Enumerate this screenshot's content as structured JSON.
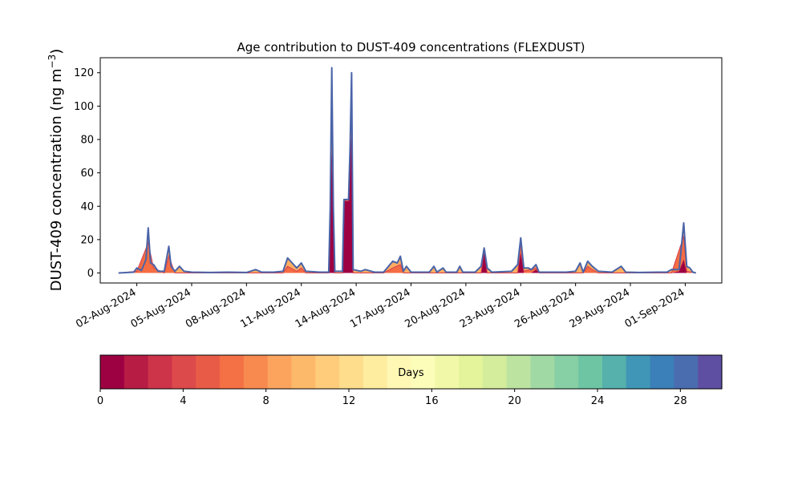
{
  "chart_data": {
    "type": "area",
    "title": "Age contribution to DUST-409 concentrations (FLEXDUST)",
    "ylabel": "DUST-409 concentration (ng m",
    "ylabel_sup": "−3",
    "ylabel_tail": ")",
    "xlabel": "",
    "ylim": [
      -6,
      129
    ],
    "xlim": [
      "2024-07-31T00:00",
      "2024-09-03T00:00"
    ],
    "yticks": [
      "0",
      "20",
      "40",
      "60",
      "80",
      "100",
      "120"
    ],
    "ytick_values": [
      0,
      20,
      40,
      60,
      80,
      100,
      120
    ],
    "xticks": [
      "02-Aug-2024",
      "05-Aug-2024",
      "08-Aug-2024",
      "11-Aug-2024",
      "14-Aug-2024",
      "17-Aug-2024",
      "20-Aug-2024",
      "23-Aug-2024",
      "26-Aug-2024",
      "29-Aug-2024",
      "01-Sep-2024"
    ],
    "xtick_dates": [
      "2024-08-02",
      "2024-08-05",
      "2024-08-08",
      "2024-08-11",
      "2024-08-14",
      "2024-08-17",
      "2024-08-20",
      "2024-08-23",
      "2024-08-26",
      "2024-08-29",
      "2024-09-01"
    ],
    "stacked": true,
    "series_note_colors": [
      "#9e0142",
      "#f46d43",
      "#fdae61",
      "#5e4fa2"
    ],
    "total": [
      [
        "2024-08-01T00:00",
        0
      ],
      [
        "2024-08-01T20:00",
        0.5
      ],
      [
        "2024-08-02T00:00",
        3
      ],
      [
        "2024-08-02T06:00",
        1.5
      ],
      [
        "2024-08-02T12:00",
        8
      ],
      [
        "2024-08-02T15:00",
        27
      ],
      [
        "2024-08-02T18:00",
        6
      ],
      [
        "2024-08-02T22:00",
        5
      ],
      [
        "2024-08-03T04:00",
        1
      ],
      [
        "2024-08-03T12:00",
        1
      ],
      [
        "2024-08-03T18:00",
        16
      ],
      [
        "2024-08-03T21:00",
        4
      ],
      [
        "2024-08-04T02:00",
        1
      ],
      [
        "2024-08-04T08:00",
        4
      ],
      [
        "2024-08-04T14:00",
        1
      ],
      [
        "2024-08-05T00:00",
        0.5
      ],
      [
        "2024-08-06T00:00",
        0.3
      ],
      [
        "2024-08-07T00:00",
        0.5
      ],
      [
        "2024-08-08T00:00",
        0.3
      ],
      [
        "2024-08-08T12:00",
        2
      ],
      [
        "2024-08-08T20:00",
        0.5
      ],
      [
        "2024-08-09T12:00",
        0.5
      ],
      [
        "2024-08-10T00:00",
        1
      ],
      [
        "2024-08-10T06:00",
        9
      ],
      [
        "2024-08-10T12:00",
        6
      ],
      [
        "2024-08-10T18:00",
        3
      ],
      [
        "2024-08-11T00:00",
        6
      ],
      [
        "2024-08-11T06:00",
        1
      ],
      [
        "2024-08-12T00:00",
        0.5
      ],
      [
        "2024-08-12T12:00",
        0.5
      ],
      [
        "2024-08-12T14:00",
        40
      ],
      [
        "2024-08-12T16:00",
        123
      ],
      [
        "2024-08-12T18:00",
        40
      ],
      [
        "2024-08-12T20:00",
        1
      ],
      [
        "2024-08-13T06:00",
        1
      ],
      [
        "2024-08-13T08:00",
        44
      ],
      [
        "2024-08-13T14:00",
        44
      ],
      [
        "2024-08-13T16:00",
        75
      ],
      [
        "2024-08-13T18:00",
        120
      ],
      [
        "2024-08-13T20:00",
        2
      ],
      [
        "2024-08-14T06:00",
        1
      ],
      [
        "2024-08-14T12:00",
        2
      ],
      [
        "2024-08-15T00:00",
        0.5
      ],
      [
        "2024-08-15T12:00",
        0.5
      ],
      [
        "2024-08-16T00:00",
        7
      ],
      [
        "2024-08-16T06:00",
        6
      ],
      [
        "2024-08-16T10:00",
        10
      ],
      [
        "2024-08-16T14:00",
        1
      ],
      [
        "2024-08-16T18:00",
        4
      ],
      [
        "2024-08-17T00:00",
        0.5
      ],
      [
        "2024-08-18T00:00",
        0.5
      ],
      [
        "2024-08-18T06:00",
        4
      ],
      [
        "2024-08-18T10:00",
        0.5
      ],
      [
        "2024-08-18T18:00",
        3
      ],
      [
        "2024-08-18T22:00",
        0.5
      ],
      [
        "2024-08-19T12:00",
        0.5
      ],
      [
        "2024-08-19T16:00",
        4
      ],
      [
        "2024-08-19T20:00",
        0.5
      ],
      [
        "2024-08-20T12:00",
        0.5
      ],
      [
        "2024-08-20T20:00",
        4
      ],
      [
        "2024-08-21T00:00",
        15
      ],
      [
        "2024-08-21T04:00",
        3
      ],
      [
        "2024-08-21T10:00",
        0.5
      ],
      [
        "2024-08-22T12:00",
        1
      ],
      [
        "2024-08-22T20:00",
        5
      ],
      [
        "2024-08-23T00:00",
        21
      ],
      [
        "2024-08-23T04:00",
        3
      ],
      [
        "2024-08-23T10:00",
        3
      ],
      [
        "2024-08-23T14:00",
        2
      ],
      [
        "2024-08-23T20:00",
        5
      ],
      [
        "2024-08-24T00:00",
        0.5
      ],
      [
        "2024-08-25T00:00",
        0.5
      ],
      [
        "2024-08-25T12:00",
        0.5
      ],
      [
        "2024-08-26T00:00",
        1
      ],
      [
        "2024-08-26T06:00",
        6
      ],
      [
        "2024-08-26T10:00",
        0.5
      ],
      [
        "2024-08-26T16:00",
        7
      ],
      [
        "2024-08-26T22:00",
        4
      ],
      [
        "2024-08-27T06:00",
        1
      ],
      [
        "2024-08-28T00:00",
        0.5
      ],
      [
        "2024-08-28T12:00",
        4
      ],
      [
        "2024-08-28T18:00",
        0.5
      ],
      [
        "2024-08-29T12:00",
        0.3
      ],
      [
        "2024-08-30T12:00",
        0.5
      ],
      [
        "2024-08-31T00:00",
        0.5
      ],
      [
        "2024-08-31T06:00",
        2
      ],
      [
        "2024-08-31T16:00",
        2
      ],
      [
        "2024-08-31T22:00",
        30
      ],
      [
        "2024-09-01T02:00",
        4
      ],
      [
        "2024-09-01T06:00",
        3
      ],
      [
        "2024-09-01T10:00",
        0.5
      ],
      [
        "2024-09-01T14:00",
        0
      ]
    ],
    "age_0_1d": [
      [
        "2024-08-01T00:00",
        0
      ],
      [
        "2024-08-12T12:00",
        0
      ],
      [
        "2024-08-12T14:00",
        30
      ],
      [
        "2024-08-12T16:00",
        72
      ],
      [
        "2024-08-12T18:00",
        38
      ],
      [
        "2024-08-12T20:00",
        0
      ],
      [
        "2024-08-13T06:00",
        0
      ],
      [
        "2024-08-13T08:00",
        43
      ],
      [
        "2024-08-13T14:00",
        43
      ],
      [
        "2024-08-13T16:00",
        68
      ],
      [
        "2024-08-13T18:00",
        85
      ],
      [
        "2024-08-13T20:00",
        0
      ],
      [
        "2024-08-20T20:00",
        0
      ],
      [
        "2024-08-21T00:00",
        12
      ],
      [
        "2024-08-21T04:00",
        0
      ],
      [
        "2024-08-22T20:00",
        0
      ],
      [
        "2024-08-23T00:00",
        12
      ],
      [
        "2024-08-23T04:00",
        0
      ],
      [
        "2024-08-23T14:00",
        0
      ],
      [
        "2024-08-23T20:00",
        2
      ],
      [
        "2024-08-24T00:00",
        0
      ],
      [
        "2024-08-31T06:00",
        0
      ],
      [
        "2024-08-31T16:00",
        1
      ],
      [
        "2024-08-31T22:00",
        8
      ],
      [
        "2024-09-01T02:00",
        0
      ],
      [
        "2024-09-01T14:00",
        0
      ]
    ],
    "age_1_5d": [
      [
        "2024-08-01T00:00",
        0
      ],
      [
        "2024-08-02T00:00",
        1
      ],
      [
        "2024-08-02T15:00",
        18
      ],
      [
        "2024-08-02T22:00",
        3
      ],
      [
        "2024-08-03T12:00",
        0
      ],
      [
        "2024-08-03T18:00",
        10
      ],
      [
        "2024-08-04T02:00",
        0
      ],
      [
        "2024-08-10T00:00",
        0
      ],
      [
        "2024-08-10T06:00",
        4
      ],
      [
        "2024-08-10T18:00",
        1
      ],
      [
        "2024-08-11T00:00",
        3
      ],
      [
        "2024-08-11T06:00",
        0
      ],
      [
        "2024-08-12T12:00",
        0
      ],
      [
        "2024-08-12T14:00",
        35
      ],
      [
        "2024-08-12T16:00",
        115
      ],
      [
        "2024-08-12T18:00",
        39
      ],
      [
        "2024-08-12T20:00",
        0
      ],
      [
        "2024-08-13T06:00",
        0
      ],
      [
        "2024-08-13T08:00",
        43.5
      ],
      [
        "2024-08-13T14:00",
        43.5
      ],
      [
        "2024-08-13T16:00",
        72
      ],
      [
        "2024-08-13T18:00",
        115
      ],
      [
        "2024-08-13T20:00",
        0
      ],
      [
        "2024-08-15T12:00",
        0
      ],
      [
        "2024-08-16T00:00",
        3
      ],
      [
        "2024-08-16T10:00",
        5
      ],
      [
        "2024-08-16T14:00",
        0
      ],
      [
        "2024-08-20T20:00",
        0
      ],
      [
        "2024-08-21T00:00",
        14
      ],
      [
        "2024-08-21T04:00",
        0
      ],
      [
        "2024-08-22T20:00",
        0
      ],
      [
        "2024-08-23T00:00",
        18
      ],
      [
        "2024-08-23T04:00",
        1
      ],
      [
        "2024-08-23T20:00",
        3
      ],
      [
        "2024-08-24T00:00",
        0
      ],
      [
        "2024-08-26T10:00",
        0
      ],
      [
        "2024-08-26T16:00",
        4
      ],
      [
        "2024-08-26T22:00",
        2
      ],
      [
        "2024-08-27T06:00",
        0
      ],
      [
        "2024-08-31T06:00",
        0
      ],
      [
        "2024-08-31T22:00",
        22
      ],
      [
        "2024-09-01T02:00",
        1
      ],
      [
        "2024-09-01T14:00",
        0
      ]
    ],
    "colorbar": {
      "label": "Days",
      "min": 0,
      "max": 30,
      "ticks": [
        "0",
        "4",
        "8",
        "12",
        "16",
        "20",
        "24",
        "28"
      ],
      "tick_values": [
        0,
        4,
        8,
        12,
        16,
        20,
        24,
        28
      ],
      "colors": [
        "#9e0142",
        "#b71c45",
        "#cd3449",
        "#dd4a4c",
        "#e85c47",
        "#f47045",
        "#f88a50",
        "#fca45e",
        "#fdb96a",
        "#fecc7b",
        "#fede8c",
        "#feec9f",
        "#fff8b4",
        "#fbfdb9",
        "#f1f9a9",
        "#e4f49a",
        "#d3ed9c",
        "#bce4a0",
        "#a1d9a4",
        "#87cfa4",
        "#6ec5a4",
        "#56b1ac",
        "#3f96b7",
        "#3b80b9",
        "#4a6db0",
        "#5e4fa2"
      ]
    }
  }
}
